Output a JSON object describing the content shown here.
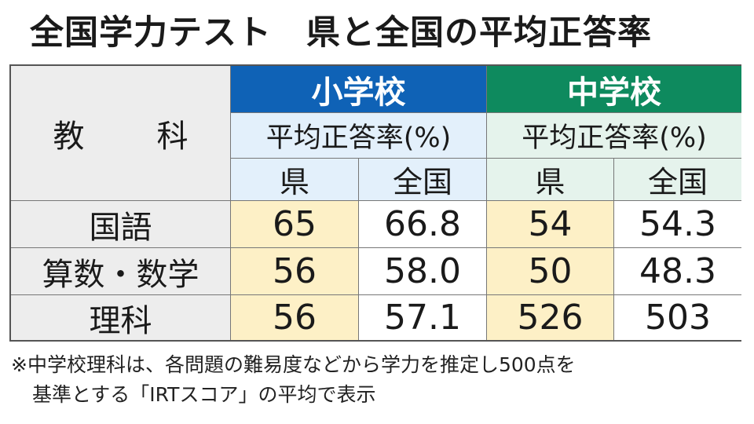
{
  "title": "全国学力テスト　県と全国の平均正答率",
  "table": {
    "subject_header": "教　科",
    "schools": [
      {
        "name": "小学校",
        "subheader": "平均正答率(%)",
        "col_pref": "県",
        "col_nat": "全国"
      },
      {
        "name": "中学校",
        "subheader": "平均正答率(%)",
        "col_pref": "県",
        "col_nat": "全国"
      }
    ],
    "rows": [
      {
        "subject": "国語",
        "values": [
          "65",
          "66.8",
          "54",
          "54.3"
        ]
      },
      {
        "subject": "算数・数学",
        "values": [
          "56",
          "58.0",
          "50",
          "48.3"
        ]
      },
      {
        "subject": "理科",
        "values": [
          "56",
          "57.1",
          "526",
          "503"
        ]
      }
    ]
  },
  "note": {
    "line1": "※中学校理科は、各問題の難易度などから学力を推定し500点を",
    "line2": "基準とする「IRTスコア」の平均で表示"
  },
  "colors": {
    "elementary": "#0f62b6",
    "junior_high": "#0e8a5e",
    "pref_highlight": "#fdf0c6"
  }
}
